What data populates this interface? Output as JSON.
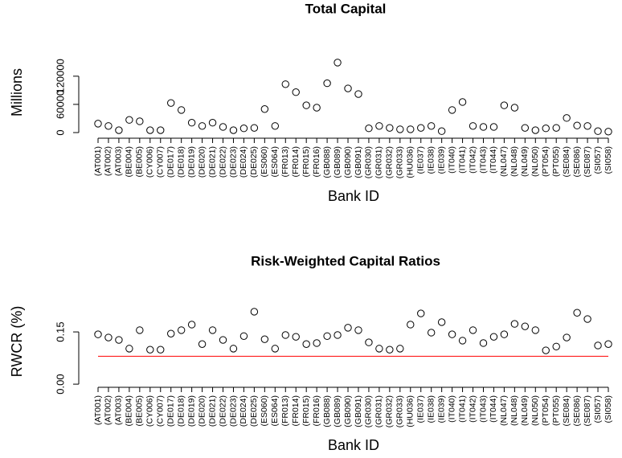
{
  "chart_data": [
    {
      "type": "scatter",
      "title": "Total Capital",
      "x_label": "Bank ID",
      "y_label": "Millions",
      "categories": [
        "(AT001)",
        "(AT002)",
        "(AT003)",
        "(BE004)",
        "(BE005)",
        "(CY006)",
        "(CY007)",
        "(DE017)",
        "(DE018)",
        "(DE019)",
        "(DE020)",
        "(DE021)",
        "(DE022)",
        "(DE023)",
        "(DE024)",
        "(DE025)",
        "(ES060)",
        "(ES064)",
        "(FR013)",
        "(FR014)",
        "(FR015)",
        "(FR016)",
        "(GB088)",
        "(GB089)",
        "(GB090)",
        "(GB091)",
        "(GR030)",
        "(GR031)",
        "(GR032)",
        "(GR033)",
        "(HU036)",
        "(IE037)",
        "(IE038)",
        "(IE039)",
        "(IT040)",
        "(IT041)",
        "(IT042)",
        "(IT043)",
        "(IT044)",
        "(NL047)",
        "(NL048)",
        "(NL049)",
        "(NL050)",
        "(PT054)",
        "(PT055)",
        "(SE084)",
        "(SE086)",
        "(SE087)",
        "(SI057)",
        "(SI058)"
      ],
      "values": [
        19000,
        14000,
        5000,
        27000,
        24000,
        5000,
        5000,
        63000,
        48000,
        21000,
        14000,
        21000,
        12000,
        5000,
        9000,
        10000,
        50000,
        14000,
        103000,
        86000,
        58000,
        53000,
        105000,
        149000,
        94000,
        82000,
        9000,
        14000,
        10000,
        7000,
        7000,
        10000,
        14000,
        3000,
        48000,
        65000,
        14000,
        12000,
        12000,
        58000,
        53000,
        10000,
        5000,
        9000,
        10000,
        31000,
        15000,
        14000,
        3000,
        2000
      ],
      "color": "#000000",
      "ylim": [
        -12000,
        183000
      ],
      "yticks": [
        0,
        60000,
        120000
      ]
    },
    {
      "type": "scatter",
      "title": "Risk-Weighted Capital Ratios",
      "x_label": "Bank ID",
      "y_label": "RWCR (%)",
      "categories": [
        "(AT001)",
        "(AT002)",
        "(AT003)",
        "(BE004)",
        "(BE005)",
        "(CY006)",
        "(CY007)",
        "(DE017)",
        "(DE018)",
        "(DE019)",
        "(DE020)",
        "(DE021)",
        "(DE022)",
        "(DE023)",
        "(DE024)",
        "(DE025)",
        "(ES060)",
        "(ES064)",
        "(FR013)",
        "(FR014)",
        "(FR015)",
        "(FR016)",
        "(GB088)",
        "(GB089)",
        "(GB090)",
        "(GB091)",
        "(GR030)",
        "(GR031)",
        "(GR032)",
        "(GR033)",
        "(HU036)",
        "(IE037)",
        "(IE038)",
        "(IE039)",
        "(IT040)",
        "(IT041)",
        "(IT042)",
        "(IT043)",
        "(IT044)",
        "(NL047)",
        "(NL048)",
        "(NL049)",
        "(NL050)",
        "(PT054)",
        "(PT055)",
        "(SE084)",
        "(SE086)",
        "(SE087)",
        "(SI057)",
        "(SI058)"
      ],
      "values": [
        0.143,
        0.134,
        0.127,
        0.102,
        0.155,
        0.099,
        0.099,
        0.145,
        0.155,
        0.171,
        0.115,
        0.155,
        0.127,
        0.102,
        0.138,
        0.208,
        0.129,
        0.102,
        0.141,
        0.136,
        0.115,
        0.118,
        0.138,
        0.141,
        0.162,
        0.155,
        0.12,
        0.102,
        0.099,
        0.102,
        0.171,
        0.203,
        0.148,
        0.178,
        0.143,
        0.125,
        0.155,
        0.118,
        0.136,
        0.143,
        0.173,
        0.166,
        0.155,
        0.097,
        0.108,
        0.134,
        0.205,
        0.187,
        0.111,
        0.115
      ],
      "color": "#000000",
      "ylim": [
        -0.009,
        0.254
      ],
      "yticks": [
        {
          "value": 0,
          "label": "0.00"
        },
        {
          "value": 0.15,
          "label": "0.15"
        }
      ],
      "reference_line": 0.08,
      "reference_color": "#ff0000"
    }
  ]
}
